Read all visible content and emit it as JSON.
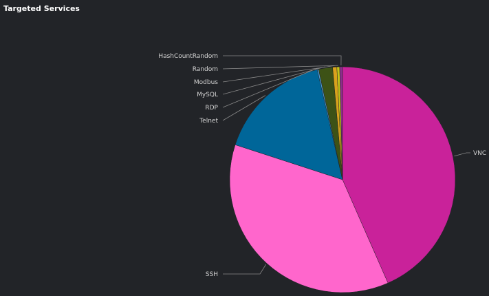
{
  "panel": {
    "title": "Targeted Services"
  },
  "chart_data": {
    "type": "pie",
    "title": "Targeted Services",
    "slices": [
      {
        "label": "VNC",
        "value": 43.4,
        "color": "#c9229a"
      },
      {
        "label": "SSH",
        "value": 36.6,
        "color": "#ff66cc"
      },
      {
        "label": "Telnet",
        "value": 16.4,
        "color": "#006699"
      },
      {
        "label": "RDP",
        "value": 0.2,
        "color": "#4f9ad1"
      },
      {
        "label": "MySQL",
        "value": 2.0,
        "color": "#3d5216"
      },
      {
        "label": "Modbus",
        "value": 0.6,
        "color": "#d9a21c"
      },
      {
        "label": "Random",
        "value": 0.4,
        "color": "#c4c418"
      },
      {
        "label": "HashCountRandom",
        "value": 0.4,
        "color": "#8c2e8c"
      }
    ],
    "start_angle_deg": 0,
    "direction": "clockwise",
    "legend": "none",
    "labels": "outside-with-leader-lines"
  }
}
